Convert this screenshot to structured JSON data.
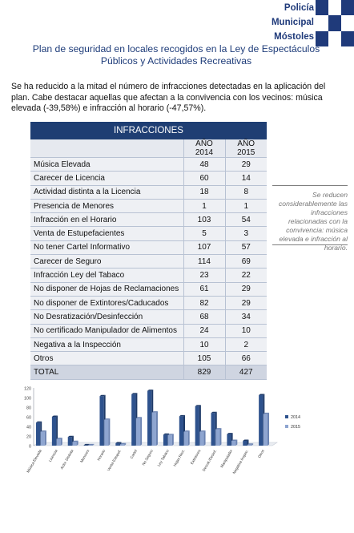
{
  "logo": {
    "line1": "Policía",
    "line2": "Municipal",
    "line3": "Móstoles",
    "colors": {
      "dark": "#1f3a7a",
      "light": "#ffffff"
    }
  },
  "title": "Plan de seguridad en locales recogidos en la Ley de Espectáculos Públicos y Actividades Recreativas",
  "intro": "Se ha reducido a la mitad el número de infracciones detectadas en la aplicación del plan. Cabe destacar aquellas que afectan a la convivencia con los vecinos: música elevada (-39,58%) e infracción al horario (-47,57%).",
  "table": {
    "title": "INFRACCIONES",
    "columns": [
      "AÑO 2014",
      "AÑO 2015"
    ],
    "rows": [
      {
        "label": "Música Elevada",
        "y2014": "48",
        "y2015": "29"
      },
      {
        "label": "Carecer de Licencia",
        "y2014": "60",
        "y2015": "14"
      },
      {
        "label": "Actividad distinta a la Licencia",
        "y2014": "18",
        "y2015": "8"
      },
      {
        "label": "Presencia de Menores",
        "y2014": "1",
        "y2015": "1"
      },
      {
        "label": "Infracción en el Horario",
        "y2014": "103",
        "y2015": "54"
      },
      {
        "label": "Venta de Estupefacientes",
        "y2014": "5",
        "y2015": "3"
      },
      {
        "label": "No tener Cartel Informativo",
        "y2014": "107",
        "y2015": "57"
      },
      {
        "label": "Carecer de Seguro",
        "y2014": "114",
        "y2015": "69"
      },
      {
        "label": "Infracción Ley del Tabaco",
        "y2014": "23",
        "y2015": "22"
      },
      {
        "label": "No disponer de Hojas de Reclamaciones",
        "y2014": "61",
        "y2015": "29"
      },
      {
        "label": "No disponer de Extintores/Caducados",
        "y2014": "82",
        "y2015": "29"
      },
      {
        "label": "No Desratización/Desinfección",
        "y2014": "68",
        "y2015": "34"
      },
      {
        "label": "No certificado Manipulador de Alimentos",
        "y2014": "24",
        "y2015": "10"
      },
      {
        "label": "Negativa a la Inspección",
        "y2014": "10",
        "y2015": "2"
      },
      {
        "label": "Otros",
        "y2014": "105",
        "y2015": "66"
      }
    ],
    "total": {
      "label": "TOTAL",
      "y2014": "829",
      "y2015": "427"
    }
  },
  "sidenote": "Se reducen considerablemente las infracciones relacionadas con la convivencia: música elevada e infracción al horario.",
  "chart_data": {
    "type": "bar",
    "categories": [
      "Música Elevada",
      "Licencia",
      "Activ. Distinta",
      "Menores",
      "Horario",
      "Venta Estupef.",
      "Cartel",
      "No Seguro",
      "Ley Tabaco",
      "Hojas Recl.",
      "Extintores",
      "Desrat./Desinf.",
      "Manipulador",
      "Negativa Inspec.",
      "Otros"
    ],
    "series": [
      {
        "name": "2014",
        "values": [
          48,
          60,
          18,
          1,
          103,
          5,
          107,
          114,
          23,
          61,
          82,
          68,
          24,
          10,
          105
        ],
        "color": "#2e528d"
      },
      {
        "name": "2015",
        "values": [
          29,
          14,
          8,
          1,
          54,
          3,
          57,
          69,
          22,
          29,
          29,
          34,
          10,
          2,
          66
        ],
        "color": "#8ea5d0"
      }
    ],
    "yticks": [
      "0",
      "20",
      "40",
      "60",
      "80",
      "100",
      "120"
    ],
    "ylim": [
      0,
      120
    ],
    "legend": "right",
    "grid": false,
    "style": "3d"
  }
}
